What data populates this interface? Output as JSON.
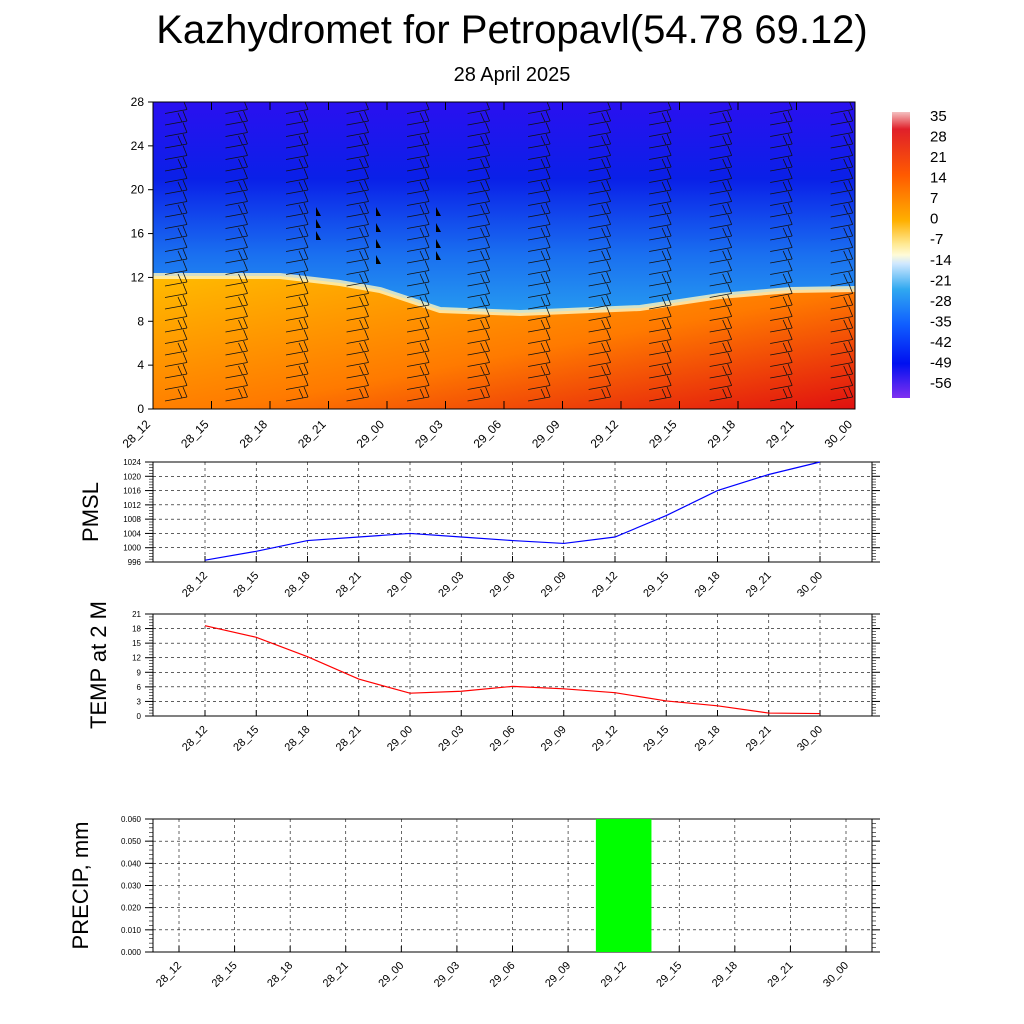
{
  "header": {
    "title": "Kazhydromet for Petropavl(54.78 69.12)",
    "subtitle": "28 April 2025"
  },
  "cross_section": {
    "y_ticks": [
      "0",
      "4",
      "8",
      "12",
      "16",
      "20",
      "24",
      "28"
    ],
    "x_ticks": [
      "28_12",
      "28_15",
      "28_18",
      "28_21",
      "29_00",
      "29_03",
      "29_06",
      "29_09",
      "29_12",
      "29_15",
      "29_18",
      "29_21",
      "30_00"
    ],
    "colorbar_labels": [
      "35",
      "28",
      "21",
      "14",
      "7",
      "0",
      "-7",
      "-14",
      "-21",
      "-28",
      "-35",
      "-42",
      "-49",
      "-56"
    ]
  },
  "colors": {
    "pmsl_line": "#0000ff",
    "temp_line": "#ff0000",
    "precip_bar": "#00ff00"
  },
  "chart_data": [
    {
      "type": "heatmap",
      "title": "",
      "ylim": [
        0,
        28
      ],
      "x": [
        "28_12",
        "28_15",
        "28_18",
        "28_21",
        "29_00",
        "29_03",
        "29_06",
        "29_09",
        "29_12",
        "29_15",
        "29_18",
        "29_21",
        "30_00"
      ],
      "colorbar": [
        35,
        28,
        21,
        14,
        7,
        0,
        -7,
        -14,
        -21,
        -28,
        -35,
        -42,
        -49,
        -56
      ]
    },
    {
      "type": "line",
      "ylabel": "PMSL",
      "ylim": [
        996,
        1024
      ],
      "y_ticks": [
        "996",
        "1000",
        "1004",
        "1008",
        "1012",
        "1016",
        "1020",
        "1024"
      ],
      "categories": [
        "28_12",
        "28_15",
        "28_18",
        "28_21",
        "29_00",
        "29_03",
        "29_06",
        "29_09",
        "29_12",
        "29_15",
        "29_18",
        "29_21",
        "30_00"
      ],
      "values": [
        996.5,
        999,
        1002,
        1003,
        1004,
        1003,
        1002,
        1001.2,
        1003,
        1009,
        1016,
        1020.5,
        1024
      ],
      "grid": true
    },
    {
      "type": "line",
      "ylabel": "TEMP at 2 M",
      "ylim": [
        0,
        21
      ],
      "y_ticks": [
        "0",
        "3",
        "6",
        "9",
        "12",
        "15",
        "18",
        "21"
      ],
      "categories": [
        "28_12",
        "28_15",
        "28_18",
        "28_21",
        "29_00",
        "29_03",
        "29_06",
        "29_09",
        "29_12",
        "29_15",
        "29_18",
        "29_21",
        "30_00"
      ],
      "values": [
        18.6,
        16.2,
        12.2,
        7.6,
        4.7,
        5.1,
        6.1,
        5.6,
        4.8,
        3.1,
        2.1,
        0.6,
        0.5
      ],
      "grid": true
    },
    {
      "type": "bar",
      "ylabel": "PRECIP, mm",
      "ylim": [
        0,
        0.06
      ],
      "y_ticks": [
        "0.000",
        "0.010",
        "0.020",
        "0.030",
        "0.040",
        "0.050",
        "0.060"
      ],
      "categories": [
        "28_12",
        "28_15",
        "28_18",
        "28_21",
        "29_00",
        "29_03",
        "29_06",
        "29_09",
        "29_12",
        "29_15",
        "29_18",
        "29_21",
        "30_00"
      ],
      "values": [
        0,
        0,
        0,
        0,
        0,
        0,
        0,
        0,
        0.06,
        0,
        0,
        0,
        0
      ],
      "grid": true
    }
  ]
}
